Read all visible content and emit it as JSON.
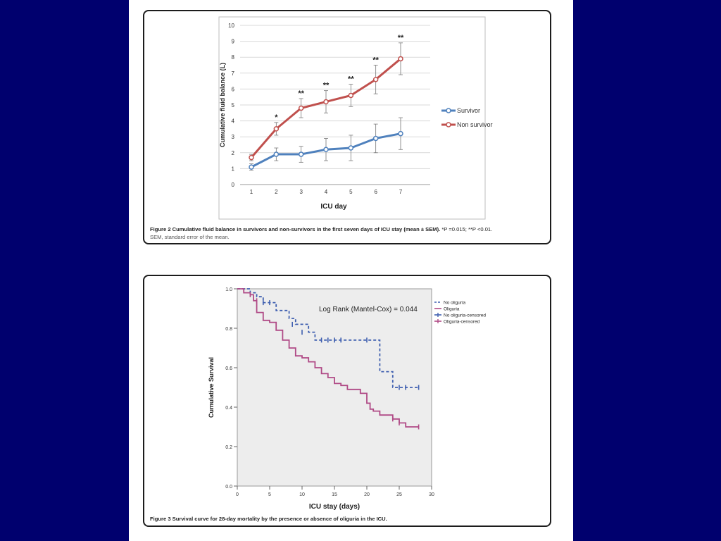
{
  "fig2": {
    "caption_bold": "Figure 2 Cumulative fluid balance in survivors and non-survivors in the first seven days of ICU stay (mean ± SEM).",
    "caption_rest": " *P =0.015; **P <0.01.",
    "caption_line2": "SEM, standard error of the mean.",
    "chart_data": {
      "type": "line",
      "xlabel": "ICU day",
      "ylabel": "Cumulative fluid balance (L)",
      "categories": [
        "1",
        "2",
        "3",
        "4",
        "5",
        "6",
        "7"
      ],
      "y_ticks": [
        "0",
        "1",
        "2",
        "3",
        "4",
        "5",
        "6",
        "7",
        "8",
        "9",
        "10"
      ],
      "ylim": [
        0,
        10
      ],
      "grid": true,
      "legend_position": "right",
      "series": [
        {
          "name": "Survivor",
          "color": "#4f81bd",
          "values": [
            1.1,
            1.9,
            1.9,
            2.2,
            2.3,
            2.9,
            3.2
          ],
          "err": [
            0.2,
            0.4,
            0.5,
            0.7,
            0.8,
            0.9,
            1.0
          ]
        },
        {
          "name": "Non survivor",
          "color": "#c0504d",
          "values": [
            1.7,
            3.5,
            4.8,
            5.2,
            5.6,
            6.6,
            7.9
          ],
          "err": [
            0.2,
            0.4,
            0.6,
            0.7,
            0.7,
            0.9,
            1.0
          ]
        }
      ],
      "significance": [
        "",
        "*",
        "**",
        "**",
        "**",
        "**",
        "**"
      ]
    }
  },
  "fig3": {
    "caption_bold": "Figure 3 Survival curve for 28-day mortality by the presence or absence of oliguria in the ICU.",
    "chart_data": {
      "type": "line",
      "subtype": "kaplan-meier",
      "xlabel": "ICU stay (days)",
      "ylabel": "Cumulative Survival",
      "x_ticks": [
        "0",
        "5",
        "10",
        "15",
        "20",
        "25",
        "30"
      ],
      "y_ticks": [
        "0.0",
        "0.2",
        "0.4",
        "0.6",
        "0.8",
        "1.0"
      ],
      "xlim": [
        0,
        30
      ],
      "ylim": [
        0,
        1
      ],
      "annotation": "Log Rank (Mantel-Cox) = 0.044",
      "legend_position": "top-right",
      "series": [
        {
          "name": "No oliguria",
          "color": "#3f5fb0",
          "dash": true,
          "steps": [
            [
              0,
              1.0
            ],
            [
              2,
              0.98
            ],
            [
              3,
              0.96
            ],
            [
              4,
              0.93
            ],
            [
              6,
              0.89
            ],
            [
              8,
              0.85
            ],
            [
              9,
              0.82
            ],
            [
              11,
              0.78
            ],
            [
              12,
              0.74
            ],
            [
              22,
              0.66
            ],
            [
              22,
              0.58
            ],
            [
              24,
              0.5
            ],
            [
              28,
              0.5
            ]
          ],
          "censored": [
            [
              4,
              0.93
            ],
            [
              5,
              0.93
            ],
            [
              8.5,
              0.82
            ],
            [
              10,
              0.78
            ],
            [
              13,
              0.74
            ],
            [
              14,
              0.74
            ],
            [
              15,
              0.74
            ],
            [
              16,
              0.74
            ],
            [
              20,
              0.74
            ],
            [
              25,
              0.5
            ],
            [
              26,
              0.5
            ],
            [
              28,
              0.5
            ]
          ]
        },
        {
          "name": "Oliguria",
          "color": "#b04a86",
          "dash": false,
          "steps": [
            [
              0,
              1.0
            ],
            [
              1,
              0.98
            ],
            [
              2,
              0.97
            ],
            [
              2.5,
              0.94
            ],
            [
              3,
              0.88
            ],
            [
              4,
              0.84
            ],
            [
              5,
              0.83
            ],
            [
              6,
              0.79
            ],
            [
              7,
              0.74
            ],
            [
              8,
              0.7
            ],
            [
              9,
              0.66
            ],
            [
              10,
              0.65
            ],
            [
              11,
              0.63
            ],
            [
              12,
              0.6
            ],
            [
              13,
              0.57
            ],
            [
              14,
              0.55
            ],
            [
              15,
              0.52
            ],
            [
              16,
              0.51
            ],
            [
              17,
              0.49
            ],
            [
              19,
              0.47
            ],
            [
              20,
              0.42
            ],
            [
              20.5,
              0.39
            ],
            [
              21,
              0.38
            ],
            [
              22,
              0.36
            ],
            [
              24,
              0.34
            ],
            [
              25,
              0.32
            ],
            [
              26,
              0.3
            ],
            [
              28,
              0.3
            ]
          ],
          "censored": [
            [
              2,
              0.97
            ],
            [
              3,
              0.94
            ],
            [
              24,
              0.34
            ],
            [
              25,
              0.32
            ],
            [
              28,
              0.3
            ]
          ]
        }
      ],
      "legend_entries": [
        "No oliguria",
        "Oliguria",
        "No oliguria-censored",
        "Oliguria-censored"
      ]
    }
  }
}
